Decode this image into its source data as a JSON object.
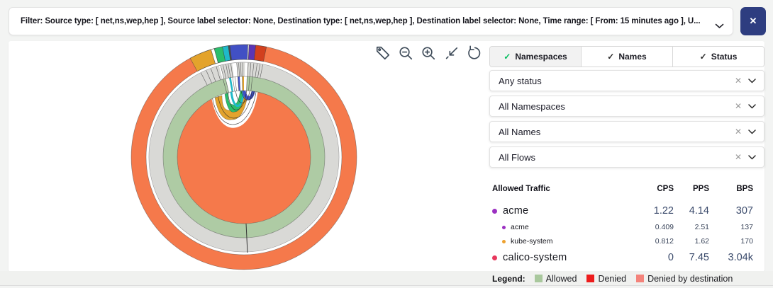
{
  "filter_bar": {
    "text": "Filter: Source type: [ net,ns,wep,hep ], Source label selector: None, Destination type: [ net,ns,wep,hep ], Destination label selector: None, Time range: [ From: 15 minutes ago ], U...",
    "close_button": "✕"
  },
  "toolbar": {
    "icons": [
      "tag",
      "zoom-out",
      "zoom-in",
      "zoom-to-fit",
      "reset-rotation"
    ]
  },
  "panel": {
    "tabs": [
      {
        "label": "Namespaces",
        "check": "✓",
        "active": true
      },
      {
        "label": "Names",
        "check": "✓",
        "active": false
      },
      {
        "label": "Status",
        "check": "✓",
        "active": false
      }
    ],
    "dropdowns": [
      {
        "value": "Any status"
      },
      {
        "value": "All Namespaces"
      },
      {
        "value": "All Names"
      },
      {
        "value": "All Flows"
      }
    ]
  },
  "traffic_table": {
    "title": "Allowed Traffic",
    "columns": [
      "CPS",
      "PPS",
      "BPS"
    ],
    "rows": [
      {
        "name": "acme",
        "level": 0,
        "dot_color": "#9b30c1",
        "values": [
          "1.22",
          "4.14",
          "307"
        ]
      },
      {
        "name": "acme",
        "level": 1,
        "dot_color": "#9b30c1",
        "values": [
          "0.409",
          "2.51",
          "137"
        ]
      },
      {
        "name": "kube-system",
        "level": 1,
        "dot_color": "#eda12f",
        "values": [
          "0.812",
          "1.62",
          "170"
        ]
      },
      {
        "name": "calico-system",
        "level": 0,
        "dot_color": "#e8385d",
        "values": [
          "0",
          "7.45",
          "3.04k"
        ]
      }
    ]
  },
  "legend": {
    "label": "Legend:",
    "items": [
      {
        "label": "Allowed",
        "color": "#a9c89d"
      },
      {
        "label": "Denied",
        "color": "#ed1c1c"
      },
      {
        "label": "Denied by destination",
        "color": "#f4837b"
      }
    ]
  },
  "diagram": {
    "type": "chord-sunburst-flow-visualization",
    "colors": {
      "orange": "#F5794B",
      "sage": "#AECBA4",
      "ring_gray": "#D9D9D6",
      "gold": "#E3A32C",
      "green": "#2BBE6C",
      "teal": "#1FB9C9",
      "blue": "#4150C4",
      "purple": "#5B35B5",
      "red": "#D2401E",
      "dark": "#4a4a4a",
      "white": "#FFFFFF",
      "outline": "#3f3f3f"
    },
    "outer_segments": [
      [
        -28.5,
        -17,
        "gold"
      ],
      [
        -17,
        -15.3,
        "white"
      ],
      [
        -15.3,
        -11,
        "green"
      ],
      [
        -11,
        -8,
        "teal"
      ],
      [
        -8,
        -7.2,
        "dark"
      ],
      [
        -7.2,
        2,
        "blue"
      ],
      [
        2,
        2.6,
        "white"
      ],
      [
        2.6,
        6,
        "purple"
      ],
      [
        6,
        11.5,
        "red"
      ]
    ],
    "gray_gaps": [
      [
        -15.3,
        -14.3,
        "white"
      ],
      [
        -7.2,
        -4.4,
        "white"
      ],
      [
        0.6,
        2.2,
        "white"
      ]
    ],
    "gray_ticks": [
      -27,
      -23.5,
      -20.5,
      -17,
      -14.3,
      -12.8,
      -11,
      -9.6,
      -8,
      -4.4,
      -3.2,
      -2,
      -0.8,
      2.6,
      4.2,
      6,
      8,
      9.8,
      11.5
    ],
    "green_cells": [
      [
        -13.2,
        -10.6,
        "white"
      ],
      [
        -10.6,
        -9.2,
        "teal"
      ],
      [
        -9.2,
        -4.4,
        "white"
      ],
      [
        -4.4,
        -3,
        "blue"
      ],
      [
        -3,
        -1.2,
        "white"
      ],
      [
        -1.2,
        0,
        "gold"
      ],
      [
        0,
        2.2,
        "white"
      ]
    ],
    "green_ticks": [
      -15,
      -13.2,
      -8,
      -6.4,
      -4.4,
      -1.2,
      2.2,
      4,
      6
    ]
  }
}
